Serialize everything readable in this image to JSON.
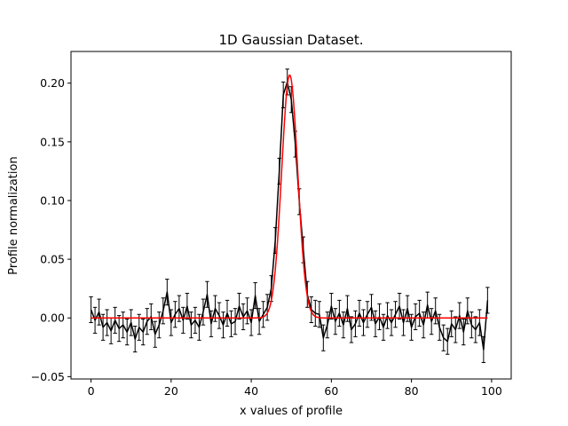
{
  "chart_data": {
    "type": "line",
    "title": "1D Gaussian Dataset.",
    "xlabel": "x values of profile",
    "ylabel": "Profile normalization",
    "xlim": [
      -5,
      104.9
    ],
    "ylim": [
      -0.052,
      0.227
    ],
    "xticks": [
      0,
      20,
      40,
      60,
      80,
      100
    ],
    "xtick_labels": [
      "0",
      "20",
      "40",
      "60",
      "80",
      "100"
    ],
    "yticks": [
      -0.05,
      0.0,
      0.05,
      0.1,
      0.15,
      0.2
    ],
    "ytick_labels": [
      "−0.05",
      "0.00",
      "0.05",
      "0.10",
      "0.15",
      "0.20"
    ],
    "grid": false,
    "legend": "none",
    "series": [
      {
        "kind": "data-with-errorbars",
        "color": "#000000",
        "yerr": 0.011,
        "x": [
          0,
          1,
          2,
          3,
          4,
          5,
          6,
          7,
          8,
          9,
          10,
          11,
          12,
          13,
          14,
          15,
          16,
          17,
          18,
          19,
          20,
          21,
          22,
          23,
          24,
          25,
          26,
          27,
          28,
          29,
          30,
          31,
          32,
          33,
          34,
          35,
          36,
          37,
          38,
          39,
          40,
          41,
          42,
          43,
          44,
          45,
          46,
          47,
          48,
          49,
          50,
          51,
          52,
          53,
          54,
          55,
          56,
          57,
          58,
          59,
          60,
          61,
          62,
          63,
          64,
          65,
          66,
          67,
          68,
          69,
          70,
          71,
          72,
          73,
          74,
          75,
          76,
          77,
          78,
          79,
          80,
          81,
          82,
          83,
          84,
          85,
          86,
          87,
          88,
          89,
          90,
          91,
          92,
          93,
          94,
          95,
          96,
          97,
          98,
          99
        ],
        "y": [
          0.007,
          -0.002,
          0.005,
          -0.008,
          -0.004,
          -0.011,
          -0.002,
          -0.009,
          -0.006,
          -0.012,
          -0.004,
          -0.018,
          -0.008,
          -0.012,
          -0.003,
          0.001,
          -0.014,
          -0.006,
          0.006,
          0.022,
          -0.004,
          0.003,
          0.008,
          -0.002,
          0.01,
          -0.006,
          -0.002,
          -0.008,
          0.005,
          0.02,
          -0.005,
          0.008,
          0.002,
          -0.006,
          0.004,
          -0.005,
          -0.003,
          0.01,
          0.001,
          0.006,
          -0.004,
          0.019,
          -0.003,
          0.003,
          0.009,
          0.025,
          0.066,
          0.125,
          0.19,
          0.201,
          0.186,
          0.148,
          0.099,
          0.058,
          0.02,
          0.007,
          0.004,
          0.003,
          -0.017,
          -0.006,
          0.01,
          -0.003,
          0.004,
          -0.006,
          0.008,
          -0.01,
          -0.005,
          0.004,
          -0.004,
          0.003,
          0.009,
          -0.005,
          0.001,
          -0.008,
          0.002,
          -0.004,
          0.003,
          0.01,
          -0.004,
          0.008,
          -0.008,
          0.001,
          0.004,
          -0.006,
          0.011,
          -0.003,
          0.006,
          -0.008,
          -0.017,
          -0.02,
          -0.005,
          -0.01,
          0.002,
          -0.012,
          0.006,
          -0.006,
          -0.01,
          -0.004,
          -0.027,
          0.015
        ]
      },
      {
        "kind": "gaussian-fit",
        "color": "#ff0000",
        "amplitude": 0.207,
        "mean": 49.6,
        "sigma": 2.0,
        "x_start": 0,
        "x_end": 99
      }
    ]
  }
}
